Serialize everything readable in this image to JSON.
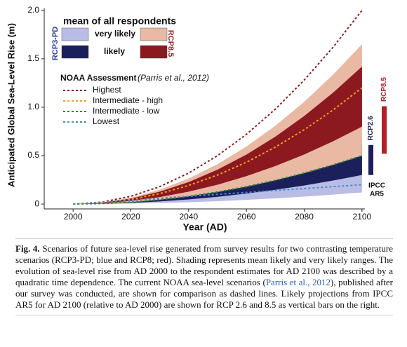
{
  "chart_data": {
    "type": "line",
    "ylabel": "Anticipated Global Sea-Level Rise (m)",
    "xlabel": "Year (AD)",
    "xlim": [
      1990,
      2101
    ],
    "ylim": [
      -0.05,
      2.02
    ],
    "xticks": [
      2000,
      2020,
      2040,
      2060,
      2080,
      2100
    ],
    "yticks": [
      0,
      0.5,
      {
        "value": 1.0,
        "label": "1.0"
      },
      1.5,
      {
        "value": 2.0,
        "label": "2.0"
      }
    ],
    "x": [
      2000,
      2010,
      2020,
      2030,
      2040,
      2050,
      2060,
      2070,
      2080,
      2090,
      2100
    ],
    "band_title": "mean of all respondents",
    "band_ranges": [
      "very likely",
      "likely"
    ],
    "band_groups": [
      {
        "name": "RCP3-PD",
        "name_color": "#2c3a9a",
        "bands": [
          {
            "color": "#b9bde6",
            "lower": [
              0,
              0.0012,
              0.0048,
              0.0108,
              0.0192,
              0.03,
              0.0432,
              0.0588,
              0.0768,
              0.0972,
              0.12
            ],
            "upper": [
              0,
              0.007,
              0.028,
              0.063,
              0.112,
              0.175,
              0.252,
              0.343,
              0.448,
              0.567,
              0.7
            ]
          },
          {
            "color": "#1b1f5a",
            "lower": [
              0,
              0.003,
              0.012,
              0.027,
              0.048,
              0.075,
              0.108,
              0.147,
              0.192,
              0.243,
              0.3
            ],
            "upper": [
              0,
              0.0062,
              0.0248,
              0.0558,
              0.0992,
              0.155,
              0.2232,
              0.3038,
              0.3968,
              0.5022,
              0.62
            ]
          }
        ]
      },
      {
        "name": "RCP8.5",
        "name_color": "#b0202a",
        "bands": [
          {
            "color": "#e9b9a4",
            "lower": [
              0,
              0.005,
              0.02,
              0.045,
              0.08,
              0.125,
              0.18,
              0.245,
              0.32,
              0.405,
              0.5
            ],
            "upper": [
              0,
              0.0165,
              0.066,
              0.1485,
              0.264,
              0.4125,
              0.594,
              0.8085,
              1.056,
              1.3365,
              1.65
            ]
          },
          {
            "color": "#8c1820",
            "lower": [
              0,
              0.008,
              0.032,
              0.072,
              0.128,
              0.2,
              0.288,
              0.392,
              0.512,
              0.648,
              0.8
            ],
            "upper": [
              0,
              0.0142,
              0.0568,
              0.1278,
              0.2272,
              0.355,
              0.5112,
              0.6958,
              0.9088,
              1.1502,
              1.42
            ]
          }
        ]
      }
    ],
    "legend_title": "NOAA Assessment",
    "legend_citation": "(Parris et al., 2012)",
    "series": [
      {
        "name": "Highest",
        "color": "#8b1a1a",
        "values": [
          0,
          0.02,
          0.08,
          0.18,
          0.32,
          0.5,
          0.72,
          0.98,
          1.28,
          1.62,
          2.0
        ]
      },
      {
        "name": "Intermediate - high",
        "color": "#f0a020",
        "values": [
          0,
          0.012,
          0.048,
          0.108,
          0.192,
          0.3,
          0.432,
          0.588,
          0.768,
          0.972,
          1.2
        ]
      },
      {
        "name": "Intermediate - low",
        "color": "#2a8a2a",
        "values": [
          0,
          0.005,
          0.02,
          0.045,
          0.08,
          0.125,
          0.18,
          0.245,
          0.32,
          0.405,
          0.5
        ]
      },
      {
        "name": "Lowest",
        "color": "#4a8ac8",
        "values": [
          0,
          0.02,
          0.04,
          0.06,
          0.08,
          0.1,
          0.12,
          0.14,
          0.16,
          0.18,
          0.2
        ]
      }
    ],
    "ipcc_label": [
      "IPCC",
      "AR5"
    ],
    "ipcc_bars": [
      {
        "name": "RCP2.6",
        "color": "#1b1f5a",
        "range": [
          0.3,
          0.61
        ]
      },
      {
        "name": "RCP8.5",
        "color": "#b0202a",
        "range": [
          0.52,
          1.01
        ]
      }
    ]
  },
  "caption": {
    "label": "Fig. 4.",
    "text_before": "Scenarios of future sea-level rise generated from survey results for two contrasting temperature scenarios (RCP3-PD; blue and RCP8; red). Shading represents mean likely and very likely ranges. The evolution of sea-level rise from AD 2000 to the respondent estimates for AD 2100 was described by a quadratic time dependence. The current NOAA sea-level scenarios (",
    "link": "Parris et al., 2012",
    "text_after": "), published after our survey was conducted, are shown for comparison as dashed lines. Likely projections from IPCC AR5 for AD 2100 (relative to AD 2000) are shown for RCP 2.6 and 8.5 as vertical bars on the right."
  }
}
